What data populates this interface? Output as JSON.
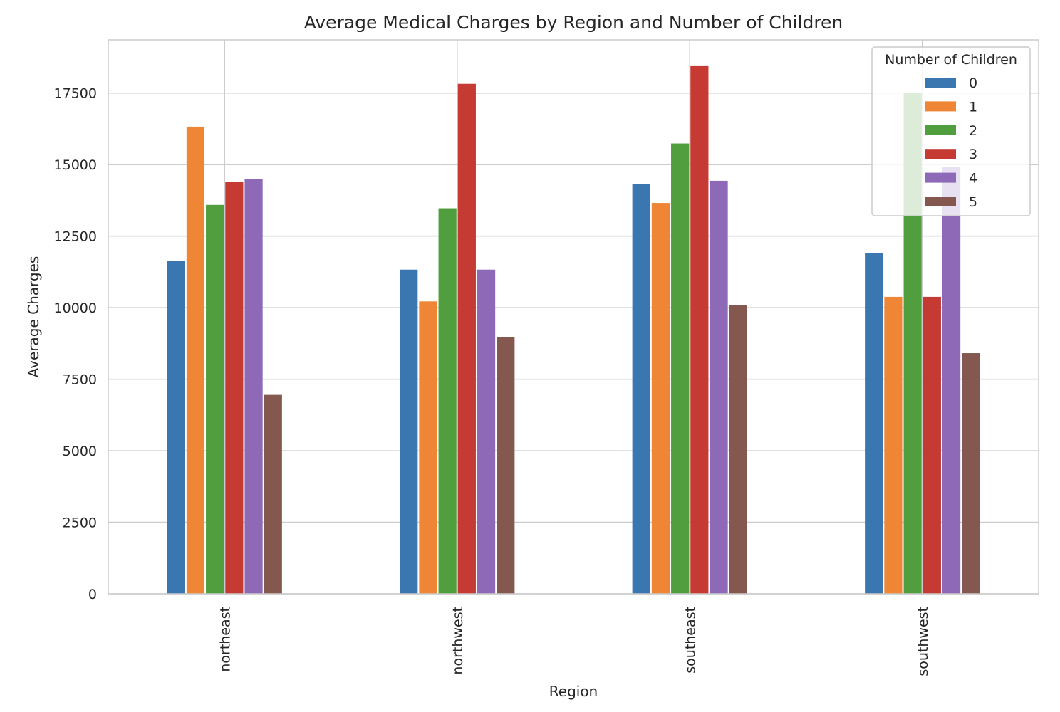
{
  "chart_data": {
    "type": "bar",
    "title": "Average Medical Charges by Region and Number of Children",
    "xlabel": "Region",
    "ylabel": "Average Charges",
    "categories": [
      "northeast",
      "northwest",
      "southeast",
      "southwest"
    ],
    "ylim": [
      0,
      19360
    ],
    "yticks": [
      0,
      2500,
      5000,
      7500,
      10000,
      12500,
      15000,
      17500
    ],
    "grid": true,
    "legend": {
      "title": "Number of Children",
      "position": "top-right"
    },
    "series": [
      {
        "name": "0",
        "color": "#3a76af",
        "values": [
          11633,
          11329,
          14310,
          11903
        ]
      },
      {
        "name": "1",
        "color": "#ef8636",
        "values": [
          16326,
          10220,
          13660,
          10379
        ]
      },
      {
        "name": "2",
        "color": "#519e3e",
        "values": [
          13592,
          13474,
          15738,
          17493
        ]
      },
      {
        "name": "3",
        "color": "#c53a32",
        "values": [
          14390,
          17824,
          18467,
          10379
        ]
      },
      {
        "name": "4",
        "color": "#8d69b8",
        "values": [
          14484,
          11329,
          14435,
          14908
        ]
      },
      {
        "name": "5",
        "color": "#84584e",
        "values": [
          6952,
          8964,
          10102,
          8410
        ]
      }
    ]
  }
}
